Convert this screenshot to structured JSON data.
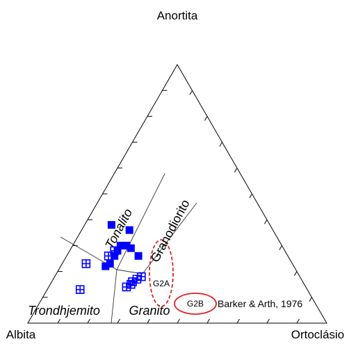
{
  "chart_data": {
    "type": "ternary",
    "vertices": {
      "top": "Anortita",
      "left": "Albita",
      "right": "Ortoclásio"
    },
    "ticks": [
      10,
      20,
      30,
      40,
      50,
      60,
      70,
      80,
      90
    ],
    "fields": [
      "Tonalito",
      "Granodiorito",
      "Trondhjemito",
      "Granito"
    ],
    "groups": [
      "G2A",
      "G2B"
    ],
    "source": "Barker & Arth, 1976",
    "series": [
      {
        "marker": "filled",
        "color": "#0000ff",
        "points": [
          [
            38,
            53,
            9
          ],
          [
            36,
            48,
            16
          ],
          [
            30,
            54,
            16
          ],
          [
            30,
            52,
            18
          ],
          [
            29,
            51,
            20
          ],
          [
            26,
            50,
            24
          ],
          [
            23,
            61,
            16
          ],
          [
            26,
            58,
            16
          ],
          [
            22,
            63,
            15
          ],
          [
            28,
            56,
            16
          ]
        ]
      },
      {
        "marker": "cross",
        "color": "#0000ff",
        "points": [
          [
            23,
            69,
            8
          ],
          [
            13,
            76,
            11
          ],
          [
            26,
            60,
            14
          ],
          [
            28,
            57,
            15
          ],
          [
            14,
            60,
            26
          ],
          [
            15,
            58,
            27
          ],
          [
            16,
            57,
            27
          ],
          [
            17,
            55,
            28
          ],
          [
            18,
            53,
            29
          ]
        ]
      }
    ]
  }
}
